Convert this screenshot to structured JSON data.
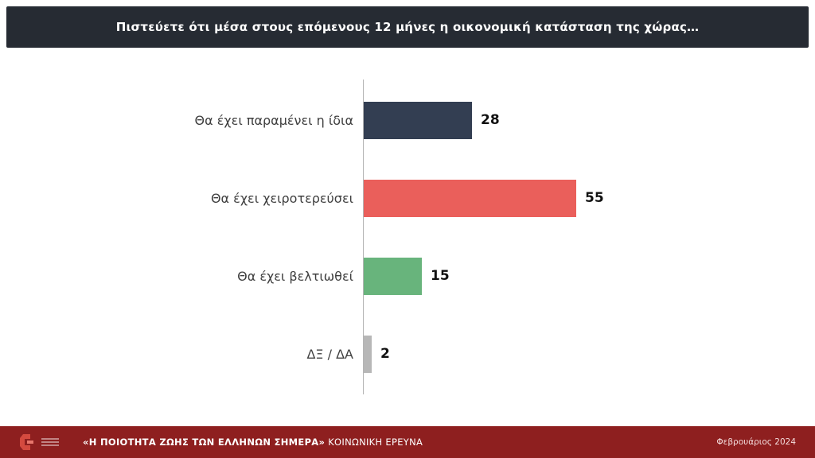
{
  "header": {
    "title": "Πιστεύετε ότι μέσα στους επόμενους 12 μήνες η οικονομική κατάσταση της χώρας…",
    "background": "#262b33"
  },
  "chart_data": {
    "type": "bar",
    "orientation": "horizontal",
    "title": "Πιστεύετε ότι μέσα στους επόμενους 12 μήνες η οικονομική κατάσταση της χώρας…",
    "categories": [
      "Θα έχει παραμένει η ίδια",
      "Θα έχει χειροτερεύσει",
      "Θα έχει βελτιωθεί",
      "ΔΞ / ΔΑ"
    ],
    "values": [
      28,
      55,
      15,
      2
    ],
    "colors": [
      "#333e52",
      "#ea5f5b",
      "#68b47c",
      "#b7b7b7"
    ],
    "xlim": [
      0,
      100
    ],
    "value_labels": true,
    "grid": false,
    "legend": false
  },
  "footer": {
    "survey_title_bold": "«Η ΠΟΙΟΤΗΤΑ ΖΩΗΣ ΤΩΝ ΕΛΛΗΝΩΝ ΣΗΜΕΡΑ»",
    "survey_title_regular": " ΚΟΙΝΩΝΙΚΗ ΕΡΕΥΝΑ",
    "date": "Φεβρουάριος 2024",
    "background": "#8e1f1f",
    "logo_color": "#d44a3f"
  }
}
